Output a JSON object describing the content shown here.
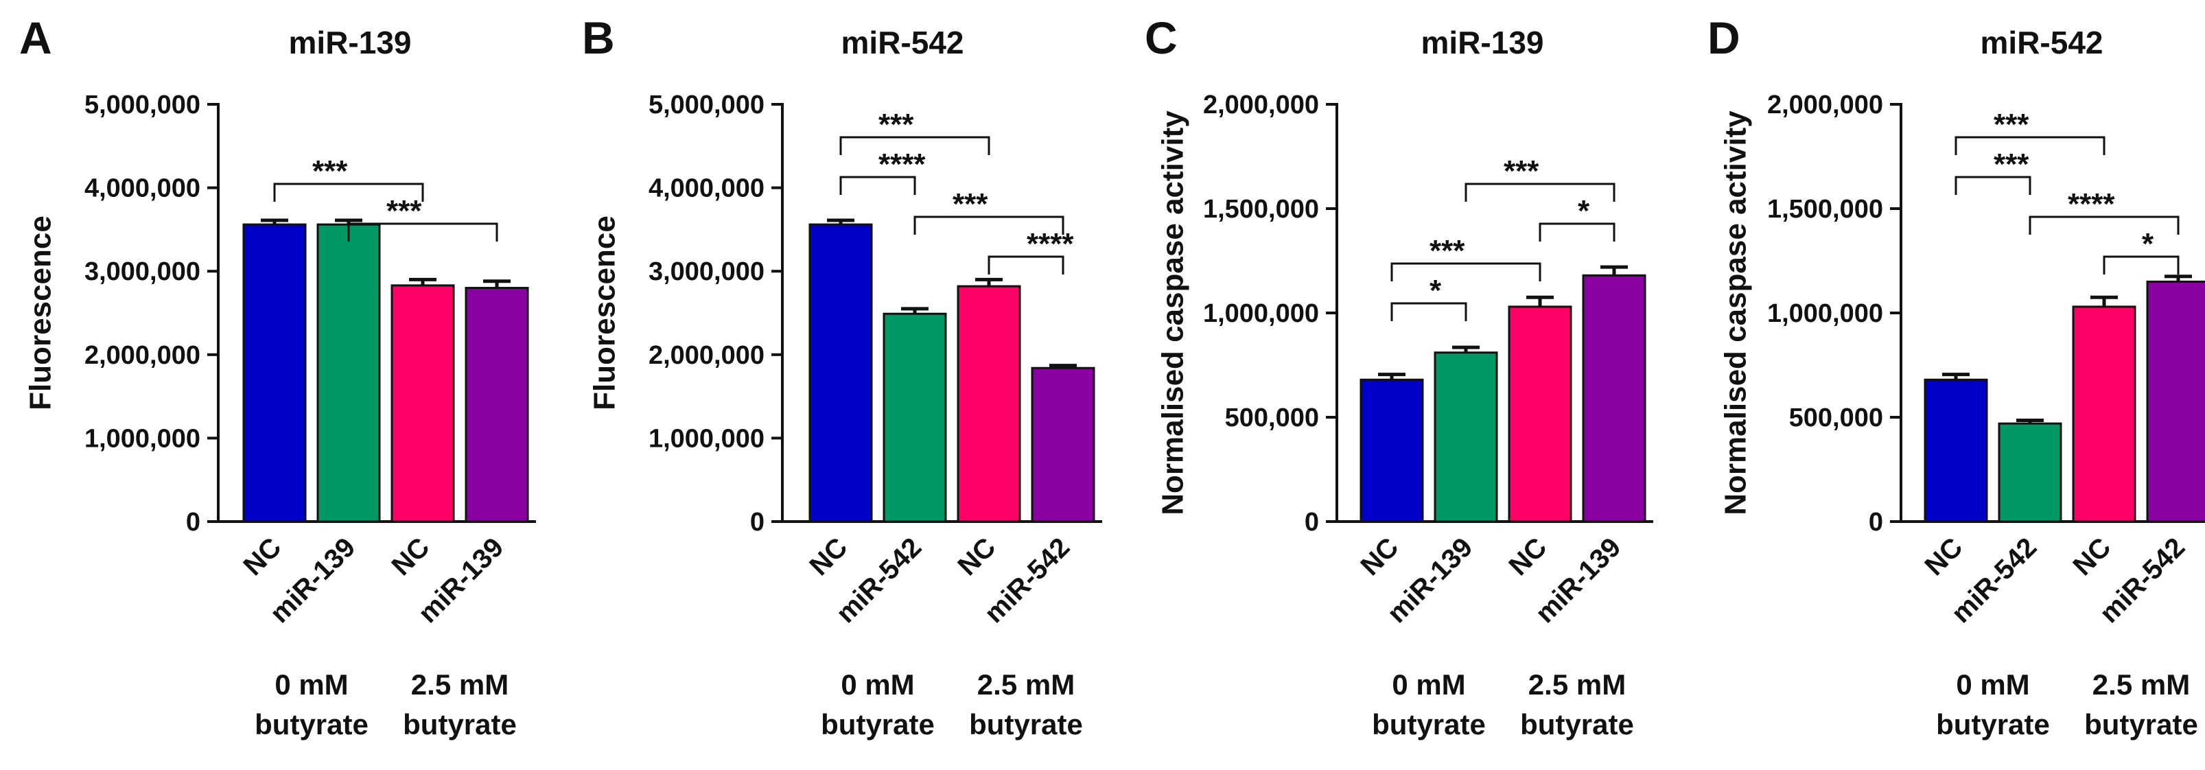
{
  "figure": {
    "conditions": [
      "0 mM butyrate",
      "2.5 mM butyrate"
    ]
  },
  "chart_data": [
    {
      "type": "bar",
      "panel": "A",
      "title": "miR-139",
      "ylabel": "Fluorescence",
      "ylim": [
        0,
        5000000
      ],
      "ticks": [
        0,
        1000000,
        2000000,
        3000000,
        4000000,
        5000000
      ],
      "tick_labels": [
        "0",
        "1,000,000",
        "2,000,000",
        "3,000,000",
        "4,000,000",
        "5,000,000"
      ],
      "categories": [
        "NC",
        "miR-139",
        "NC",
        "miR-139"
      ],
      "groups": [
        "0 mM butyrate",
        "0 mM butyrate",
        "2.5 mM butyrate",
        "2.5 mM butyrate"
      ],
      "values": [
        3560000,
        3560000,
        2830000,
        2800000
      ],
      "errors": [
        50000,
        50000,
        70000,
        80000
      ],
      "colors": [
        "#0000c8",
        "#009966",
        "#ff0066",
        "#8a00a0"
      ],
      "significance": [
        {
          "from": 0,
          "to": 2,
          "label": "***"
        },
        {
          "from": 1,
          "to": 3,
          "label": "***"
        }
      ]
    },
    {
      "type": "bar",
      "panel": "B",
      "title": "miR-542",
      "ylabel": "Fluorescence",
      "ylim": [
        0,
        5000000
      ],
      "ticks": [
        0,
        1000000,
        2000000,
        3000000,
        4000000,
        5000000
      ],
      "tick_labels": [
        "0",
        "1,000,000",
        "2,000,000",
        "3,000,000",
        "4,000,000",
        "5,000,000"
      ],
      "categories": [
        "NC",
        "miR-542",
        "NC",
        "miR-542"
      ],
      "groups": [
        "0 mM butyrate",
        "0 mM butyrate",
        "2.5 mM butyrate",
        "2.5 mM butyrate"
      ],
      "values": [
        3560000,
        2490000,
        2820000,
        1840000
      ],
      "errors": [
        50000,
        60000,
        80000,
        30000
      ],
      "colors": [
        "#0000c8",
        "#009966",
        "#ff0066",
        "#8a00a0"
      ],
      "significance": [
        {
          "from": 0,
          "to": 2,
          "label": "***"
        },
        {
          "from": 0,
          "to": 1,
          "label": "****"
        },
        {
          "from": 1,
          "to": 3,
          "label": "***"
        },
        {
          "from": 2,
          "to": 3,
          "label": "****"
        }
      ]
    },
    {
      "type": "bar",
      "panel": "C",
      "title": "miR-139",
      "ylabel": "Normalised caspase activity",
      "ylim": [
        0,
        2000000
      ],
      "ticks": [
        0,
        500000,
        1000000,
        1500000,
        2000000
      ],
      "tick_labels": [
        "0",
        "500,000",
        "1,000,000",
        "1,500,000",
        "2,000,000"
      ],
      "categories": [
        "NC",
        "miR-139",
        "NC",
        "miR-139"
      ],
      "groups": [
        "0 mM butyrate",
        "0 mM butyrate",
        "2.5 mM butyrate",
        "2.5 mM butyrate"
      ],
      "values": [
        680000,
        810000,
        1030000,
        1180000
      ],
      "errors": [
        25000,
        25000,
        45000,
        40000
      ],
      "colors": [
        "#0000c8",
        "#009966",
        "#ff0066",
        "#8a00a0"
      ],
      "significance": [
        {
          "from": 1,
          "to": 3,
          "label": "***"
        },
        {
          "from": 2,
          "to": 3,
          "label": "*"
        },
        {
          "from": 0,
          "to": 2,
          "label": "***"
        },
        {
          "from": 0,
          "to": 1,
          "label": "*"
        }
      ]
    },
    {
      "type": "bar",
      "panel": "D",
      "title": "miR-542",
      "ylabel": "Normalised caspase activity",
      "ylim": [
        0,
        2000000
      ],
      "ticks": [
        0,
        500000,
        1000000,
        1500000,
        2000000
      ],
      "tick_labels": [
        "0",
        "500,000",
        "1,000,000",
        "1,500,000",
        "2,000,000"
      ],
      "categories": [
        "NC",
        "miR-542",
        "NC",
        "miR-542"
      ],
      "groups": [
        "0 mM butyrate",
        "0 mM butyrate",
        "2.5 mM butyrate",
        "2.5 mM butyrate"
      ],
      "values": [
        680000,
        470000,
        1030000,
        1150000
      ],
      "errors": [
        25000,
        15000,
        45000,
        25000
      ],
      "colors": [
        "#0000c8",
        "#009966",
        "#ff0066",
        "#8a00a0"
      ],
      "significance": [
        {
          "from": 0,
          "to": 2,
          "label": "***"
        },
        {
          "from": 0,
          "to": 1,
          "label": "***"
        },
        {
          "from": 1,
          "to": 3,
          "label": "****"
        },
        {
          "from": 2,
          "to": 3,
          "label": "*"
        }
      ]
    }
  ]
}
